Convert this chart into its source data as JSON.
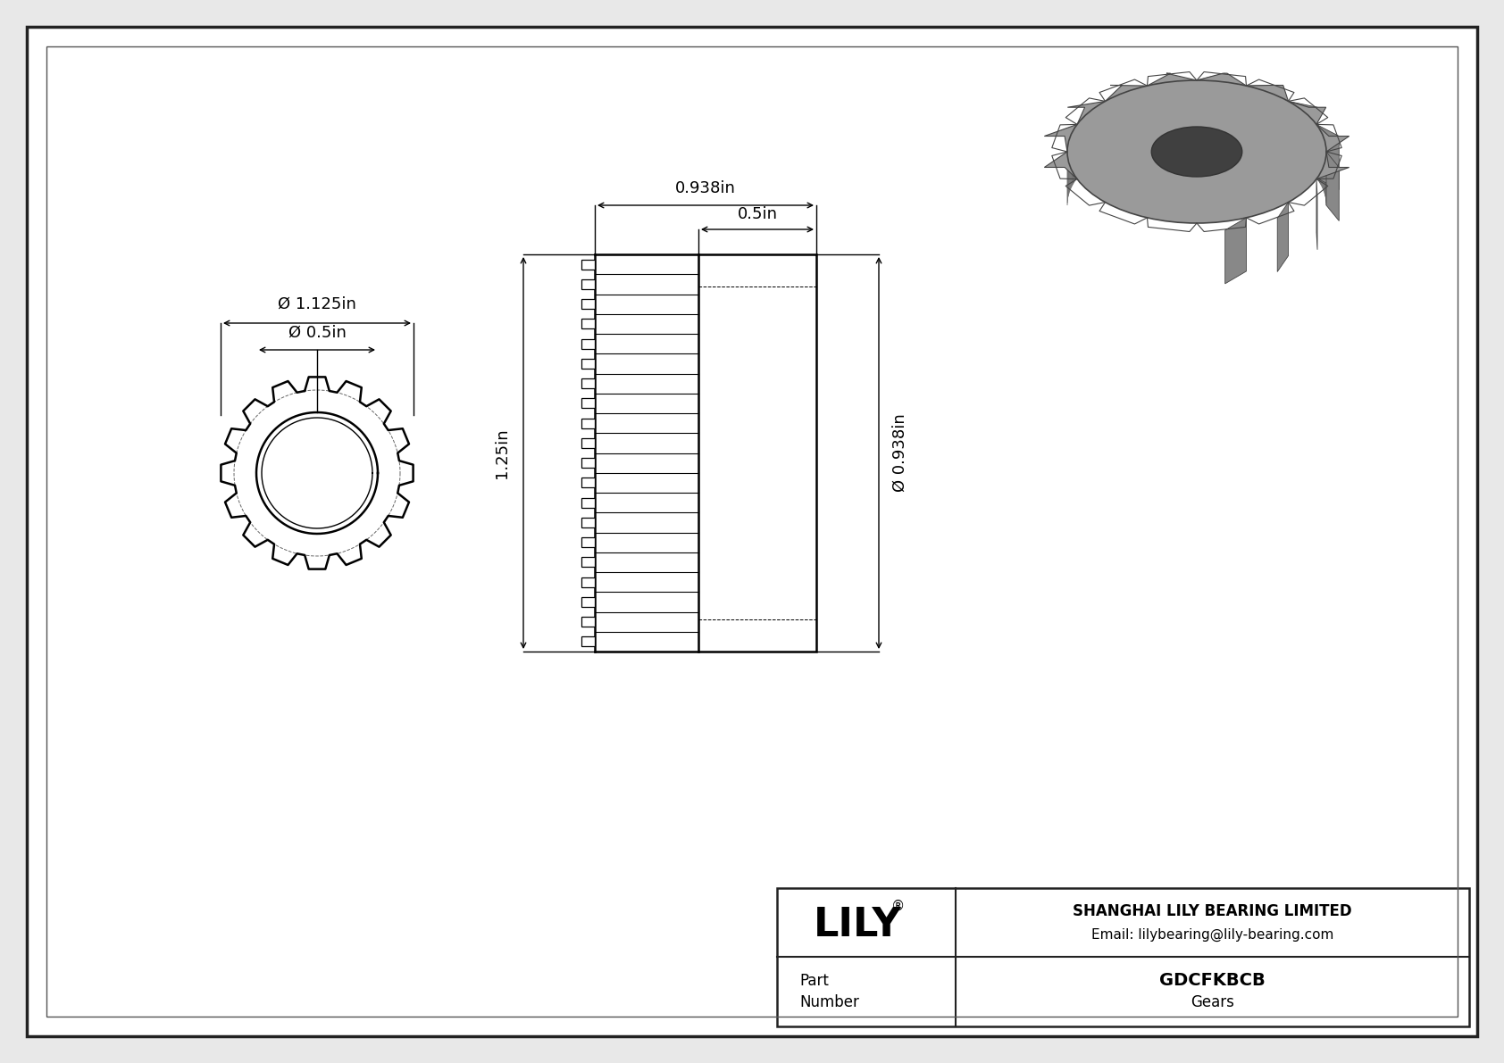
{
  "bg_color": "#e8e8e8",
  "drawing_bg": "#ffffff",
  "line_color": "#000000",
  "dim_color": "#000000",
  "part_number": "GDCFKBCB",
  "part_type": "Gears",
  "company": "SHANGHAI LILY BEARING LIMITED",
  "email": "Email: lilybearing@lily-bearing.com",
  "num_teeth": 16,
  "dim_od": "Ø 1.125in",
  "dim_bore": "Ø 0.5in",
  "dim_total_width": "0.938in",
  "dim_hub_width": "0.5in",
  "dim_height": "1.25in",
  "dim_hub_od": "Ø 0.938in"
}
